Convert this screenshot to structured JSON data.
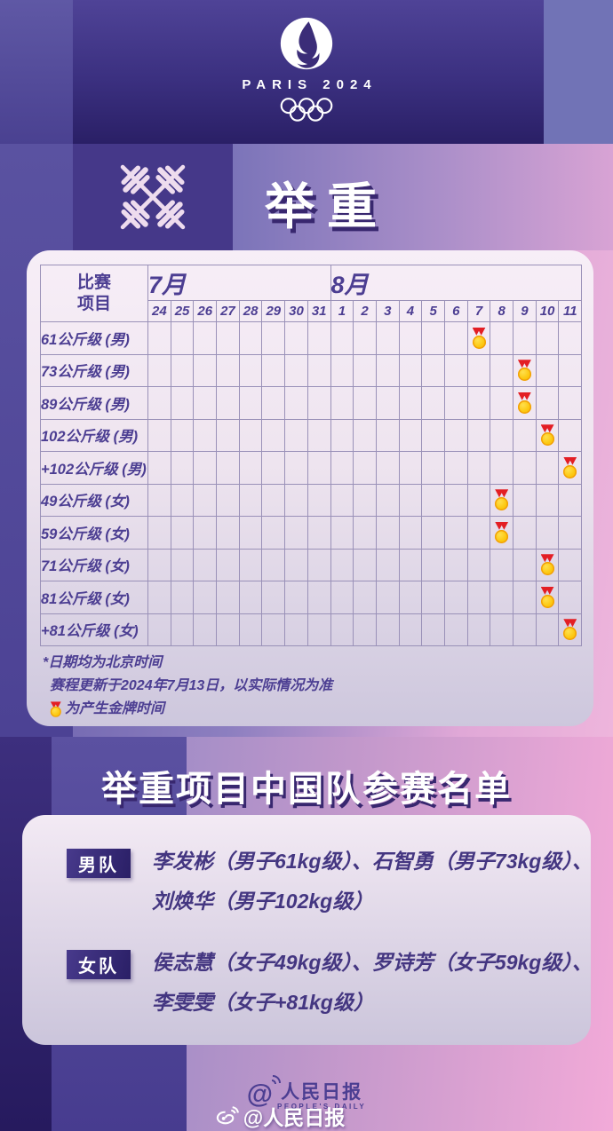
{
  "brand": {
    "wordmark": "PARIS 2024",
    "flame_icon": "paris2024-flame-emblem",
    "rings_icon": "olympic-rings"
  },
  "sport": {
    "title": "举重",
    "icon": "crossed-barbells"
  },
  "schedule": {
    "corner_header_lines": [
      "比赛",
      "项目"
    ],
    "months": [
      {
        "label": "7月",
        "days": [
          "24",
          "25",
          "26",
          "27",
          "28",
          "29",
          "30",
          "31"
        ]
      },
      {
        "label": "8月",
        "days": [
          "1",
          "2",
          "3",
          "4",
          "5",
          "6",
          "7",
          "8",
          "9",
          "10",
          "11"
        ]
      }
    ],
    "rows": [
      {
        "label": "61公斤级 (男)",
        "gold": {
          "month": "8月",
          "day": "7"
        }
      },
      {
        "label": "73公斤级 (男)",
        "gold": {
          "month": "8月",
          "day": "9"
        }
      },
      {
        "label": "89公斤级 (男)",
        "gold": {
          "month": "8月",
          "day": "9"
        }
      },
      {
        "label": "102公斤级 (男)",
        "gold": {
          "month": "8月",
          "day": "10"
        }
      },
      {
        "label": "+102公斤级 (男)",
        "gold": {
          "month": "8月",
          "day": "11"
        }
      },
      {
        "label": "49公斤级 (女)",
        "gold": {
          "month": "8月",
          "day": "8"
        }
      },
      {
        "label": "59公斤级 (女)",
        "gold": {
          "month": "8月",
          "day": "8"
        }
      },
      {
        "label": "71公斤级 (女)",
        "gold": {
          "month": "8月",
          "day": "10"
        }
      },
      {
        "label": "81公斤级 (女)",
        "gold": {
          "month": "8月",
          "day": "10"
        }
      },
      {
        "label": "+81公斤级 (女)",
        "gold": {
          "month": "8月",
          "day": "11"
        }
      }
    ],
    "notes": [
      "*日期均为北京时间",
      "赛程更新于2024年7月13日，以实际情况为准",
      "为产生金牌时间"
    ]
  },
  "roster": {
    "title": "举重项目中国队参赛名单",
    "teams": [
      {
        "badge": "男队",
        "lines": [
          "李发彬（男子61kg级）、石智勇（男子73kg级）、",
          "刘焕华（男子102kg级）"
        ]
      },
      {
        "badge": "女队",
        "lines": [
          "侯志慧（女子49kg级）、罗诗芳（女子59kg级）、",
          "李雯雯（女子+81kg级）"
        ]
      }
    ]
  },
  "footer": {
    "logo_at": "@",
    "logo_name": "人民日报",
    "logo_sub": "PEOPLE'S DAILY",
    "weibo_handle": "@人民日报"
  },
  "colors": {
    "accent_purple": "#4c3e92",
    "dark_purple_box": "#453889",
    "gold": "#fcc70f",
    "ribbon_red": "#e31e24",
    "card_top": "#f7eef7",
    "card_bottom": "#cdc7dd"
  }
}
